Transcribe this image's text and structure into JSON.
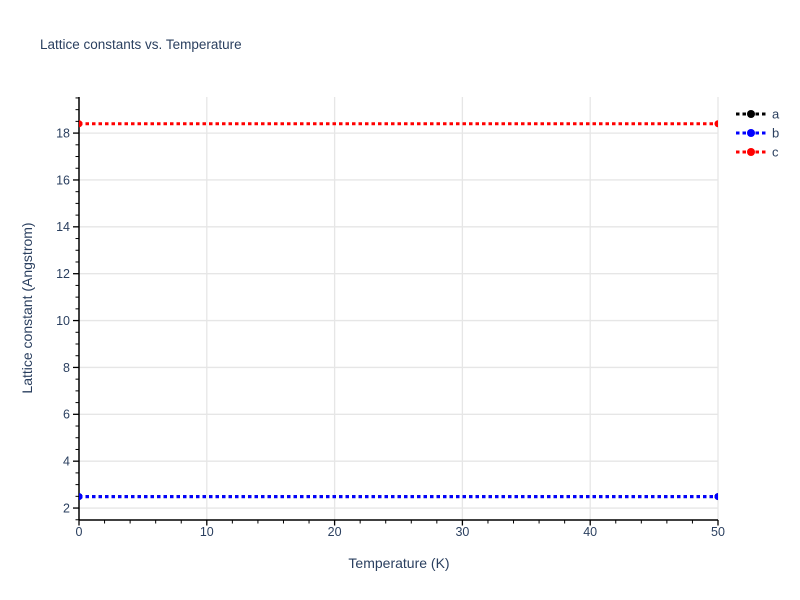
{
  "title": "Lattice constants vs. Temperature",
  "colors": {
    "text": "#2a3f5f",
    "grid": "#e6e6e6",
    "axis": "#000000",
    "background": "#ffffff"
  },
  "chart_data": {
    "type": "line",
    "title": "Lattice constants vs. Temperature",
    "xlabel": "Temperature (K)",
    "ylabel": "Lattice constant (Angstrom)",
    "x": [
      0,
      50
    ],
    "series": [
      {
        "name": "a",
        "color": "#000000",
        "values": [
          2.49,
          2.49
        ]
      },
      {
        "name": "b",
        "color": "#0000ff",
        "values": [
          2.49,
          2.49
        ]
      },
      {
        "name": "c",
        "color": "#ff0000",
        "values": [
          18.4,
          18.4
        ]
      }
    ],
    "xlim": [
      0,
      50
    ],
    "ylim": [
      1.49,
      19.54
    ],
    "x_major_ticks": [
      0,
      10,
      20,
      30,
      40,
      50
    ],
    "x_minor_step": 2,
    "y_major_ticks": [
      2,
      4,
      6,
      8,
      10,
      12,
      14,
      16,
      18
    ],
    "y_minor_step": 0.5,
    "grid": true,
    "line_style": "dotted",
    "marker": "circle",
    "legend_position": "top-right",
    "legend_labels": [
      "a",
      "b",
      "c"
    ]
  }
}
